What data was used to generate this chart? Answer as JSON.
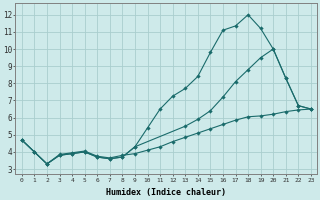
{
  "background_color": "#ceeaea",
  "grid_color": "#aacece",
  "line_color": "#1a6b6b",
  "xlabel": "Humidex (Indice chaleur)",
  "xlim": [
    -0.5,
    23.5
  ],
  "ylim": [
    2.7,
    12.7
  ],
  "xticks": [
    0,
    1,
    2,
    3,
    4,
    5,
    6,
    7,
    8,
    9,
    10,
    11,
    12,
    13,
    14,
    15,
    16,
    17,
    18,
    19,
    20,
    21,
    22,
    23
  ],
  "yticks": [
    3,
    4,
    5,
    6,
    7,
    8,
    9,
    10,
    11,
    12
  ],
  "line_A_x": [
    0,
    1,
    2,
    3,
    4,
    5,
    6,
    7,
    8,
    9,
    10,
    11,
    12,
    13,
    14,
    15,
    16,
    17,
    18,
    19,
    20,
    21,
    22,
    23
  ],
  "line_A_y": [
    4.7,
    4.0,
    3.3,
    3.8,
    3.9,
    4.0,
    3.7,
    3.6,
    3.7,
    4.3,
    5.4,
    6.5,
    7.25,
    7.7,
    8.4,
    9.8,
    11.1,
    11.35,
    12.0,
    11.2,
    10.0,
    8.3,
    6.7,
    6.5
  ],
  "line_B_x": [
    0,
    1,
    2,
    3,
    4,
    5,
    6,
    7,
    8,
    9,
    13,
    14,
    15,
    16,
    17,
    18,
    19,
    20,
    21,
    22,
    23
  ],
  "line_B_y": [
    4.7,
    4.0,
    3.3,
    3.8,
    3.9,
    4.0,
    3.7,
    3.6,
    3.7,
    4.3,
    5.5,
    5.9,
    6.4,
    7.2,
    8.1,
    8.8,
    9.5,
    10.0,
    8.3,
    6.7,
    6.5
  ],
  "line_C_x": [
    0,
    1,
    2,
    3,
    4,
    5,
    6,
    7,
    8,
    9,
    10,
    11,
    12,
    13,
    14,
    15,
    16,
    17,
    18,
    19,
    20,
    21,
    22,
    23
  ],
  "line_C_y": [
    4.7,
    4.0,
    3.3,
    3.85,
    3.95,
    4.05,
    3.75,
    3.65,
    3.8,
    3.9,
    4.1,
    4.3,
    4.6,
    4.85,
    5.1,
    5.35,
    5.6,
    5.85,
    6.05,
    6.1,
    6.2,
    6.35,
    6.45,
    6.5
  ]
}
